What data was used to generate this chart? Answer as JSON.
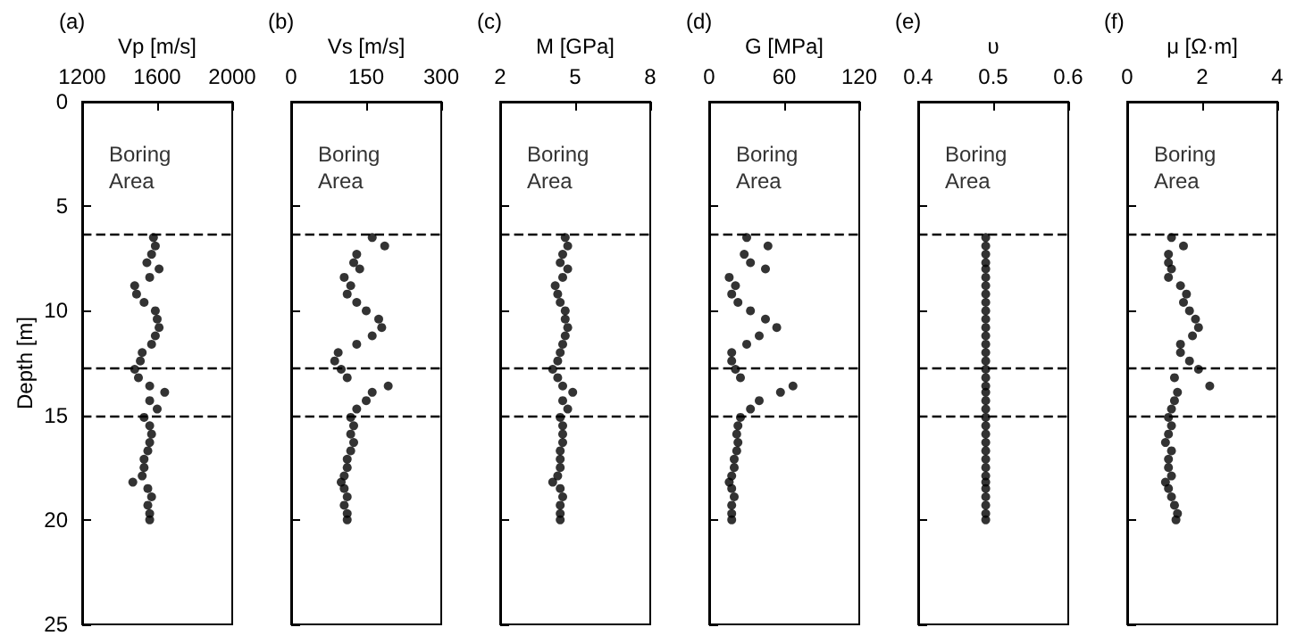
{
  "chart_data": [
    {
      "type": "scatter",
      "title": "(a)",
      "xlabel": "Vp [m/s]",
      "ylabel": "Depth [m]",
      "color": "#000000",
      "marker": "circle",
      "xlim": [
        1200,
        2000
      ],
      "xticks": [
        1200,
        1600,
        2000
      ],
      "ylim": [
        25,
        0
      ],
      "yticks": [
        0,
        5,
        10,
        15,
        20,
        25
      ],
      "annotations": [
        "Boring Area"
      ],
      "ref_lines": [
        {
          "axis": "y",
          "value": 6.3,
          "line_style": "dashed"
        },
        {
          "axis": "y",
          "value": 12.7,
          "line_style": "dashed"
        },
        {
          "axis": "y",
          "value": 15,
          "line_style": "dashed"
        }
      ],
      "x": [
        1580,
        1590,
        1570,
        1545,
        1610,
        1560,
        1480,
        1490,
        1530,
        1590,
        1600,
        1610,
        1590,
        1570,
        1520,
        1510,
        1480,
        1500,
        1560,
        1640,
        1560,
        1600,
        1530,
        1560,
        1570,
        1560,
        1550,
        1530,
        1530,
        1520,
        1470,
        1550,
        1570,
        1550,
        1560,
        1560
      ],
      "values": [
        6.5,
        6.9,
        7.3,
        7.7,
        8.0,
        8.4,
        8.8,
        9.2,
        9.6,
        10.0,
        10.4,
        10.8,
        11.2,
        11.6,
        12.0,
        12.4,
        12.8,
        13.2,
        13.6,
        13.9,
        14.3,
        14.7,
        15.1,
        15.5,
        15.9,
        16.3,
        16.7,
        17.1,
        17.5,
        17.9,
        18.2,
        18.5,
        18.9,
        19.3,
        19.7,
        20.0
      ]
    },
    {
      "type": "scatter",
      "title": "(b)",
      "xlabel": "Vs [m/s]",
      "color": "#000000",
      "marker": "circle",
      "xlim": [
        0,
        300
      ],
      "xticks": [
        0,
        150,
        300
      ],
      "ylim": [
        25,
        0
      ],
      "yticks": [
        0,
        5,
        10,
        15,
        20,
        25
      ],
      "tick_labels": "x",
      "annotations": [
        "Boring Area"
      ],
      "ref_lines": [
        {
          "axis": "y",
          "value": 6.3,
          "line_style": "dashed"
        },
        {
          "axis": "y",
          "value": 12.7,
          "line_style": "dashed"
        },
        {
          "axis": "y",
          "value": 15,
          "line_style": "dashed"
        }
      ],
      "x": [
        162,
        187,
        131,
        125,
        137,
        106,
        119,
        112,
        131,
        150,
        175,
        181,
        162,
        131,
        94,
        87,
        100,
        112,
        194,
        162,
        150,
        131,
        119,
        125,
        119,
        125,
        119,
        112,
        112,
        106,
        100,
        106,
        112,
        106,
        112,
        112
      ],
      "values": [
        6.5,
        6.9,
        7.3,
        7.7,
        8.0,
        8.4,
        8.8,
        9.2,
        9.6,
        10.0,
        10.4,
        10.8,
        11.2,
        11.6,
        12.0,
        12.4,
        12.8,
        13.2,
        13.6,
        13.9,
        14.3,
        14.7,
        15.1,
        15.5,
        15.9,
        16.3,
        16.7,
        17.1,
        17.5,
        17.9,
        18.2,
        18.5,
        18.9,
        19.3,
        19.7,
        20.0
      ]
    },
    {
      "type": "scatter",
      "title": "(c)",
      "xlabel": "M [GPa]",
      "color": "#000000",
      "marker": "circle",
      "xlim": [
        2,
        8
      ],
      "xticks": [
        2,
        5,
        8
      ],
      "ylim": [
        25,
        0
      ],
      "yticks": [
        0,
        5,
        10,
        15,
        20,
        25
      ],
      "tick_labels": "x",
      "annotations": [
        "Boring Area"
      ],
      "ref_lines": [
        {
          "axis": "y",
          "value": 6.3,
          "line_style": "dashed"
        },
        {
          "axis": "y",
          "value": 12.7,
          "line_style": "dashed"
        },
        {
          "axis": "y",
          "value": 15,
          "line_style": "dashed"
        }
      ],
      "x": [
        4.6,
        4.7,
        4.5,
        4.4,
        4.7,
        4.5,
        4.2,
        4.3,
        4.4,
        4.6,
        4.6,
        4.7,
        4.6,
        4.5,
        4.4,
        4.3,
        4.1,
        4.3,
        4.5,
        4.9,
        4.5,
        4.7,
        4.4,
        4.5,
        4.5,
        4.5,
        4.4,
        4.4,
        4.4,
        4.3,
        4.1,
        4.4,
        4.5,
        4.4,
        4.4,
        4.4
      ],
      "values": [
        6.5,
        6.9,
        7.3,
        7.7,
        8.0,
        8.4,
        8.8,
        9.2,
        9.6,
        10.0,
        10.4,
        10.8,
        11.2,
        11.6,
        12.0,
        12.4,
        12.8,
        13.2,
        13.6,
        13.9,
        14.3,
        14.7,
        15.1,
        15.5,
        15.9,
        16.3,
        16.7,
        17.1,
        17.5,
        17.9,
        18.2,
        18.5,
        18.9,
        19.3,
        19.7,
        20.0
      ]
    },
    {
      "type": "scatter",
      "title": "(d)",
      "xlabel": "G [MPa]",
      "color": "#000000",
      "marker": "circle",
      "xlim": [
        0,
        120
      ],
      "xticks": [
        0,
        60,
        120
      ],
      "ylim": [
        25,
        0
      ],
      "yticks": [
        0,
        5,
        10,
        15,
        20,
        25
      ],
      "tick_labels": "x",
      "annotations": [
        "Boring Area"
      ],
      "ref_lines": [
        {
          "axis": "y",
          "value": 6.3,
          "line_style": "dashed"
        },
        {
          "axis": "y",
          "value": 12.7,
          "line_style": "dashed"
        },
        {
          "axis": "y",
          "value": 15,
          "line_style": "dashed"
        }
      ],
      "x": [
        30,
        47,
        28,
        33,
        45,
        16,
        21,
        18,
        23,
        33,
        45,
        54,
        40,
        30,
        18,
        18,
        21,
        25,
        67,
        57,
        40,
        33,
        25,
        23,
        22,
        23,
        22,
        20,
        20,
        18,
        16,
        18,
        20,
        18,
        18,
        18
      ],
      "values": [
        6.5,
        6.9,
        7.3,
        7.7,
        8.0,
        8.4,
        8.8,
        9.2,
        9.6,
        10.0,
        10.4,
        10.8,
        11.2,
        11.6,
        12.0,
        12.4,
        12.8,
        13.2,
        13.6,
        13.9,
        14.3,
        14.7,
        15.1,
        15.5,
        15.9,
        16.3,
        16.7,
        17.1,
        17.5,
        17.9,
        18.2,
        18.5,
        18.9,
        19.3,
        19.7,
        20.0
      ]
    },
    {
      "type": "scatter",
      "title": "(e)",
      "xlabel": "υ",
      "color": "#000000",
      "marker": "circle",
      "xlim": [
        0.4,
        0.6
      ],
      "xticks": [
        0.4,
        0.5,
        0.6
      ],
      "ylim": [
        25,
        0
      ],
      "yticks": [
        0,
        5,
        10,
        15,
        20,
        25
      ],
      "tick_labels": "x",
      "annotations": [
        "Boring Area"
      ],
      "ref_lines": [
        {
          "axis": "y",
          "value": 6.3,
          "line_style": "dashed"
        },
        {
          "axis": "y",
          "value": 12.7,
          "line_style": "dashed"
        },
        {
          "axis": "y",
          "value": 15,
          "line_style": "dashed"
        }
      ],
      "x": [
        0.49,
        0.49,
        0.49,
        0.49,
        0.49,
        0.49,
        0.49,
        0.49,
        0.49,
        0.49,
        0.49,
        0.49,
        0.49,
        0.49,
        0.49,
        0.49,
        0.49,
        0.49,
        0.49,
        0.49,
        0.49,
        0.49,
        0.49,
        0.49,
        0.49,
        0.49,
        0.49,
        0.49,
        0.49,
        0.49,
        0.49,
        0.49,
        0.49,
        0.49,
        0.49,
        0.49
      ],
      "values": [
        6.5,
        6.9,
        7.3,
        7.7,
        8.0,
        8.4,
        8.8,
        9.2,
        9.6,
        10.0,
        10.4,
        10.8,
        11.2,
        11.6,
        12.0,
        12.4,
        12.8,
        13.2,
        13.6,
        13.9,
        14.3,
        14.7,
        15.1,
        15.5,
        15.9,
        16.3,
        16.7,
        17.1,
        17.5,
        17.9,
        18.2,
        18.5,
        18.9,
        19.3,
        19.7,
        20.0
      ]
    },
    {
      "type": "scatter",
      "title": "(f)",
      "xlabel": "μ [Ω·m]",
      "color": "#000000",
      "marker": "circle",
      "xlim": [
        0,
        4
      ],
      "xticks": [
        0,
        2,
        4
      ],
      "ylim": [
        25,
        0
      ],
      "yticks": [
        0,
        5,
        10,
        15,
        20,
        25
      ],
      "tick_labels": "x",
      "annotations": [
        "Boring Area"
      ],
      "ref_lines": [
        {
          "axis": "y",
          "value": 6.3,
          "line_style": "dashed"
        },
        {
          "axis": "y",
          "value": 12.7,
          "line_style": "dashed"
        },
        {
          "axis": "y",
          "value": 15,
          "line_style": "dashed"
        }
      ],
      "x": [
        1.18,
        1.5,
        1.1,
        1.1,
        1.18,
        1.1,
        1.42,
        1.58,
        1.5,
        1.66,
        1.82,
        1.9,
        1.74,
        1.42,
        1.42,
        1.66,
        1.9,
        1.26,
        2.2,
        1.34,
        1.26,
        1.18,
        1.1,
        1.18,
        1.1,
        1.02,
        1.18,
        1.1,
        1.1,
        1.18,
        1.02,
        1.1,
        1.18,
        1.26,
        1.34,
        1.3
      ],
      "values": [
        6.5,
        6.9,
        7.3,
        7.7,
        8.0,
        8.4,
        8.8,
        9.2,
        9.6,
        10.0,
        10.4,
        10.8,
        11.2,
        11.6,
        12.0,
        12.4,
        12.8,
        13.2,
        13.6,
        13.9,
        14.3,
        14.7,
        15.1,
        15.5,
        15.9,
        16.3,
        16.7,
        17.1,
        17.5,
        17.9,
        18.2,
        18.5,
        18.9,
        19.3,
        19.7,
        20.0
      ]
    }
  ]
}
